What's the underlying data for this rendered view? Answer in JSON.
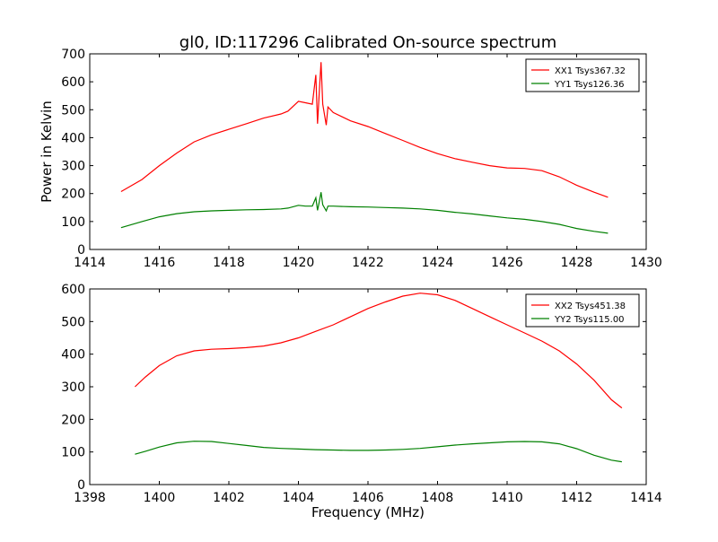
{
  "chart_data": [
    {
      "type": "line",
      "title": "gl0, ID:117296 Calibrated On-source spectrum",
      "xlabel": "",
      "ylabel": "Power in Kelvin",
      "xlim": [
        1414,
        1430
      ],
      "ylim": [
        0,
        700
      ],
      "xticks": [
        1414,
        1416,
        1418,
        1420,
        1422,
        1424,
        1426,
        1428,
        1430
      ],
      "yticks": [
        0,
        100,
        200,
        300,
        400,
        500,
        600,
        700
      ],
      "legend_position": "top-right",
      "series": [
        {
          "name": "XX1 Tsys367.32",
          "color": "#ff0000",
          "points": [
            [
              1414.9,
              207
            ],
            [
              1415.5,
              250
            ],
            [
              1416,
              300
            ],
            [
              1416.5,
              345
            ],
            [
              1417,
              385
            ],
            [
              1417.5,
              410
            ],
            [
              1418,
              430
            ],
            [
              1418.5,
              450
            ],
            [
              1419,
              470
            ],
            [
              1419.5,
              485
            ],
            [
              1419.7,
              495
            ],
            [
              1420.0,
              530
            ],
            [
              1420.2,
              525
            ],
            [
              1420.4,
              520
            ],
            [
              1420.5,
              625
            ],
            [
              1420.55,
              450
            ],
            [
              1420.6,
              560
            ],
            [
              1420.65,
              670
            ],
            [
              1420.7,
              520
            ],
            [
              1420.8,
              445
            ],
            [
              1420.85,
              510
            ],
            [
              1421,
              490
            ],
            [
              1421.5,
              460
            ],
            [
              1422,
              440
            ],
            [
              1422.5,
              415
            ],
            [
              1423,
              390
            ],
            [
              1423.5,
              365
            ],
            [
              1424,
              343
            ],
            [
              1424.5,
              325
            ],
            [
              1425,
              312
            ],
            [
              1425.5,
              300
            ],
            [
              1426,
              292
            ],
            [
              1426.5,
              290
            ],
            [
              1427,
              282
            ],
            [
              1427.5,
              260
            ],
            [
              1428,
              230
            ],
            [
              1428.5,
              205
            ],
            [
              1428.9,
              187
            ]
          ]
        },
        {
          "name": "YY1 Tsys126.36",
          "color": "#008000",
          "points": [
            [
              1414.9,
              78
            ],
            [
              1415.5,
              100
            ],
            [
              1416,
              117
            ],
            [
              1416.5,
              128
            ],
            [
              1417,
              135
            ],
            [
              1417.5,
              138
            ],
            [
              1418,
              140
            ],
            [
              1418.5,
              142
            ],
            [
              1419,
              143
            ],
            [
              1419.5,
              145
            ],
            [
              1419.7,
              148
            ],
            [
              1420.0,
              158
            ],
            [
              1420.2,
              155
            ],
            [
              1420.4,
              155
            ],
            [
              1420.5,
              185
            ],
            [
              1420.55,
              140
            ],
            [
              1420.6,
              170
            ],
            [
              1420.65,
              205
            ],
            [
              1420.7,
              160
            ],
            [
              1420.8,
              138
            ],
            [
              1420.85,
              155
            ],
            [
              1421,
              155
            ],
            [
              1421.5,
              153
            ],
            [
              1422,
              152
            ],
            [
              1422.5,
              150
            ],
            [
              1423,
              148
            ],
            [
              1423.5,
              145
            ],
            [
              1424,
              140
            ],
            [
              1424.5,
              133
            ],
            [
              1425,
              127
            ],
            [
              1425.5,
              120
            ],
            [
              1426,
              113
            ],
            [
              1426.5,
              108
            ],
            [
              1427,
              100
            ],
            [
              1427.5,
              90
            ],
            [
              1428,
              75
            ],
            [
              1428.5,
              65
            ],
            [
              1428.9,
              58
            ]
          ]
        }
      ]
    },
    {
      "type": "line",
      "title": "",
      "xlabel": "Frequency (MHz)",
      "ylabel": "",
      "xlim": [
        1398,
        1414
      ],
      "ylim": [
        0,
        600
      ],
      "xticks": [
        1398,
        1400,
        1402,
        1404,
        1406,
        1408,
        1410,
        1412,
        1414
      ],
      "yticks": [
        0,
        100,
        200,
        300,
        400,
        500,
        600
      ],
      "legend_position": "top-right",
      "series": [
        {
          "name": "XX2 Tsys451.38",
          "color": "#ff0000",
          "points": [
            [
              1399.3,
              300
            ],
            [
              1399.6,
              330
            ],
            [
              1400,
              365
            ],
            [
              1400.5,
              395
            ],
            [
              1401,
              410
            ],
            [
              1401.5,
              415
            ],
            [
              1402,
              417
            ],
            [
              1402.5,
              420
            ],
            [
              1403,
              425
            ],
            [
              1403.5,
              435
            ],
            [
              1404,
              450
            ],
            [
              1404.5,
              470
            ],
            [
              1405,
              490
            ],
            [
              1405.5,
              515
            ],
            [
              1406,
              540
            ],
            [
              1406.5,
              560
            ],
            [
              1407,
              578
            ],
            [
              1407.5,
              587
            ],
            [
              1408,
              582
            ],
            [
              1408.5,
              565
            ],
            [
              1409,
              540
            ],
            [
              1409.5,
              515
            ],
            [
              1410,
              490
            ],
            [
              1410.5,
              465
            ],
            [
              1411,
              440
            ],
            [
              1411.5,
              410
            ],
            [
              1412,
              370
            ],
            [
              1412.5,
              320
            ],
            [
              1413,
              260
            ],
            [
              1413.3,
              235
            ]
          ]
        },
        {
          "name": "YY2 Tsys115.00",
          "color": "#008000",
          "points": [
            [
              1399.3,
              93
            ],
            [
              1399.6,
              102
            ],
            [
              1400,
              115
            ],
            [
              1400.5,
              128
            ],
            [
              1401,
              133
            ],
            [
              1401.5,
              132
            ],
            [
              1402,
              126
            ],
            [
              1402.5,
              120
            ],
            [
              1403,
              114
            ],
            [
              1403.5,
              111
            ],
            [
              1404,
              109
            ],
            [
              1404.5,
              107
            ],
            [
              1405,
              106
            ],
            [
              1405.5,
              105
            ],
            [
              1406,
              105
            ],
            [
              1406.5,
              106
            ],
            [
              1407,
              108
            ],
            [
              1407.5,
              111
            ],
            [
              1408,
              116
            ],
            [
              1408.5,
              121
            ],
            [
              1409,
              125
            ],
            [
              1409.5,
              128
            ],
            [
              1410,
              131
            ],
            [
              1410.5,
              132
            ],
            [
              1411,
              131
            ],
            [
              1411.5,
              125
            ],
            [
              1412,
              110
            ],
            [
              1412.5,
              90
            ],
            [
              1413,
              75
            ],
            [
              1413.3,
              70
            ]
          ]
        }
      ]
    }
  ]
}
